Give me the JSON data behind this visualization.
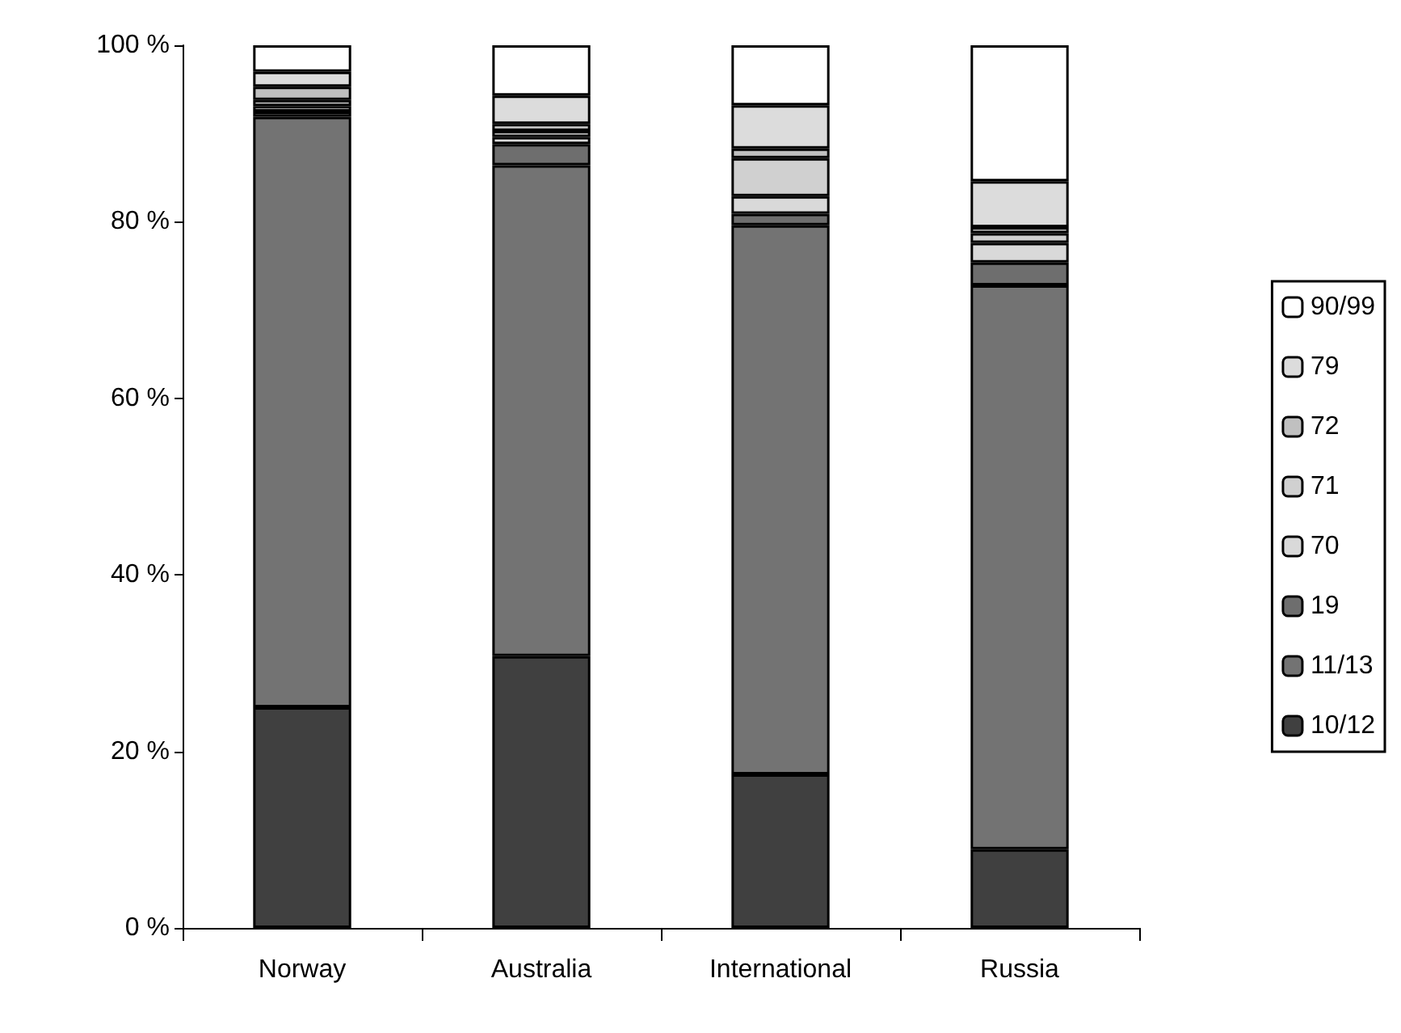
{
  "chart_data": {
    "type": "bar",
    "stacked": true,
    "categories": [
      "Norway",
      "Australia",
      "International",
      "Russia"
    ],
    "series": [
      {
        "name": "10/12",
        "color": "#404040",
        "values": [
          25,
          30.8,
          17.4,
          8.9
        ]
      },
      {
        "name": "11/13",
        "color": "#737373",
        "values": [
          66.9,
          55.6,
          62.2,
          63.9
        ]
      },
      {
        "name": "19",
        "color": "#6e6e6e",
        "values": [
          0.6,
          2.4,
          1.3,
          2.6
        ]
      },
      {
        "name": "70",
        "color": "#d9d9d9",
        "values": [
          0.6,
          0.8,
          2.0,
          2.2
        ]
      },
      {
        "name": "71",
        "color": "#d0d0d0",
        "values": [
          0.7,
          0.7,
          4.3,
          1.1
        ]
      },
      {
        "name": "72",
        "color": "#c0c0c0",
        "values": [
          1.5,
          0.8,
          1.1,
          0.7
        ]
      },
      {
        "name": "79",
        "color": "#dcdcdc",
        "values": [
          1.7,
          3.2,
          4.9,
          5.2
        ]
      },
      {
        "name": "90/99",
        "color": "#ffffff",
        "values": [
          3,
          5.7,
          6.8,
          15.4
        ]
      }
    ],
    "ylim": [
      0,
      100
    ],
    "yticks": [
      {
        "value": 0,
        "label": "0 %"
      },
      {
        "value": 20,
        "label": "20 %"
      },
      {
        "value": 40,
        "label": "40 %"
      },
      {
        "value": 60,
        "label": "60 %"
      },
      {
        "value": 80,
        "label": "80 %"
      },
      {
        "value": 100,
        "label": "100 %"
      }
    ],
    "grid": false,
    "legend": "right"
  }
}
